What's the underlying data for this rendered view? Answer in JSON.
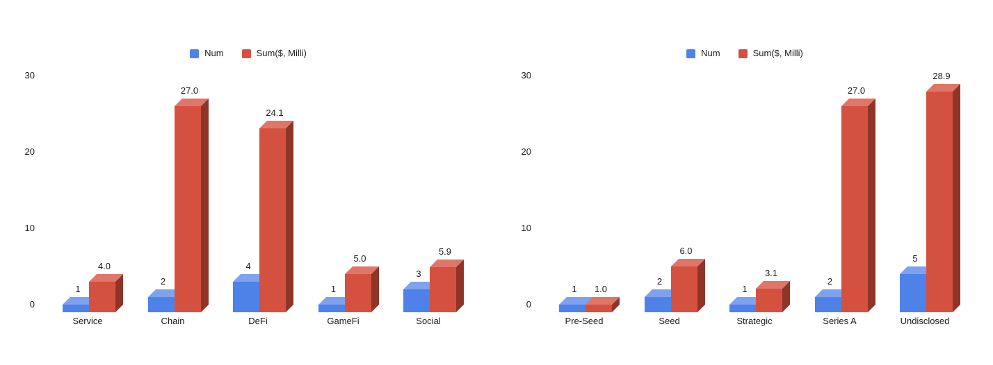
{
  "background": "#ffffff",
  "text_color": "#1a1a1a",
  "colors": {
    "num": {
      "front": "#4e82e8",
      "top": "#7fa2ef",
      "side": "#3c64b5"
    },
    "sum": {
      "front": "#d5513f",
      "top": "#df7668",
      "side": "#8f3528"
    }
  },
  "legend": {
    "num_label": "Num",
    "sum_label": "Sum($, Milli)"
  },
  "chart_data": [
    {
      "type": "bar",
      "style": "3d-grouped",
      "legend_position": "top",
      "grid": false,
      "ylim": [
        0,
        30
      ],
      "yticks": [
        0,
        10,
        20,
        30
      ],
      "categories": [
        "Service",
        "Chain",
        "DeFi",
        "GameFi",
        "Social"
      ],
      "series": [
        {
          "name": "Num",
          "color_key": "num",
          "values": [
            1,
            2,
            4,
            1,
            3
          ],
          "labels": [
            "1",
            "2",
            "4",
            "1",
            "3"
          ]
        },
        {
          "name": "Sum($, Milli)",
          "color_key": "sum",
          "values": [
            4.0,
            27.0,
            24.1,
            5.0,
            5.9
          ],
          "labels": [
            "4.0",
            "27.0",
            "24.1",
            "5.0",
            "5.9"
          ]
        }
      ]
    },
    {
      "type": "bar",
      "style": "3d-grouped",
      "legend_position": "top",
      "grid": false,
      "ylim": [
        0,
        30
      ],
      "yticks": [
        0,
        10,
        20,
        30
      ],
      "categories": [
        "Pre-Seed",
        "Seed",
        "Strategic",
        "Series A",
        "Undisclosed"
      ],
      "series": [
        {
          "name": "Num",
          "color_key": "num",
          "values": [
            1,
            2,
            1,
            2,
            5
          ],
          "labels": [
            "1",
            "2",
            "1",
            "2",
            "5"
          ]
        },
        {
          "name": "Sum($, Milli)",
          "color_key": "sum",
          "values": [
            1.0,
            6.0,
            3.1,
            27.0,
            28.9
          ],
          "labels": [
            "1.0",
            "6.0",
            "3.1",
            "27.0",
            "28.9"
          ]
        }
      ]
    }
  ]
}
